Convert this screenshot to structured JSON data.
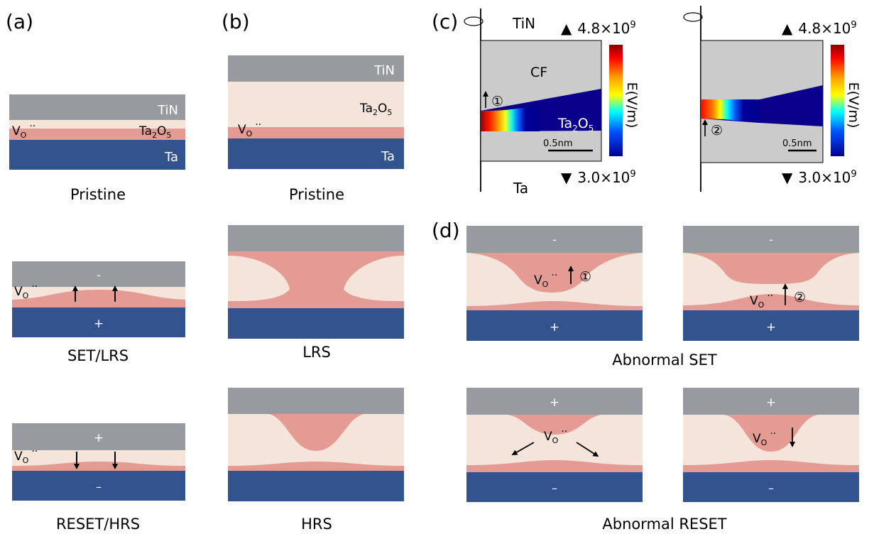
{
  "panel_labels": {
    "a": "(a)",
    "b": "(b)",
    "c": "(c)",
    "d": "(d)"
  },
  "layers": {
    "top": "TiN",
    "oxide_sub": "Ta",
    "oxide_o": "O",
    "oxide_5": "5",
    "bottom": "Ta",
    "cf": "CF",
    "vo_main": "V",
    "vo_sub": "O",
    "vo_dots": "··"
  },
  "captions": {
    "a_pristine": "Pristine",
    "a_set": "SET/LRS",
    "a_reset": "RESET/HRS",
    "b_pristine": "Pristine",
    "b_lrs": "LRS",
    "b_hrs": "HRS",
    "d_set": "Abnormal SET",
    "d_reset": "Abnormal RESET"
  },
  "polarity": {
    "minus": "-",
    "plus": "+",
    "minus_bottom": "–"
  },
  "markers": {
    "one": "①",
    "two": "②"
  },
  "colorbar": {
    "label": "E(V/m)",
    "max": "4.8×10",
    "min": "3.0×10",
    "exp": "9",
    "scale": "0.5nm",
    "up_symbol": "▲",
    "down_symbol": "▼"
  },
  "colors": {
    "tin": "#979a9f",
    "oxide": "#f4e4d9",
    "cf": "#e39b93",
    "ta": "#33538f",
    "sim_bg": "#cbcbcb",
    "sim_oxide": "#0b008c"
  }
}
